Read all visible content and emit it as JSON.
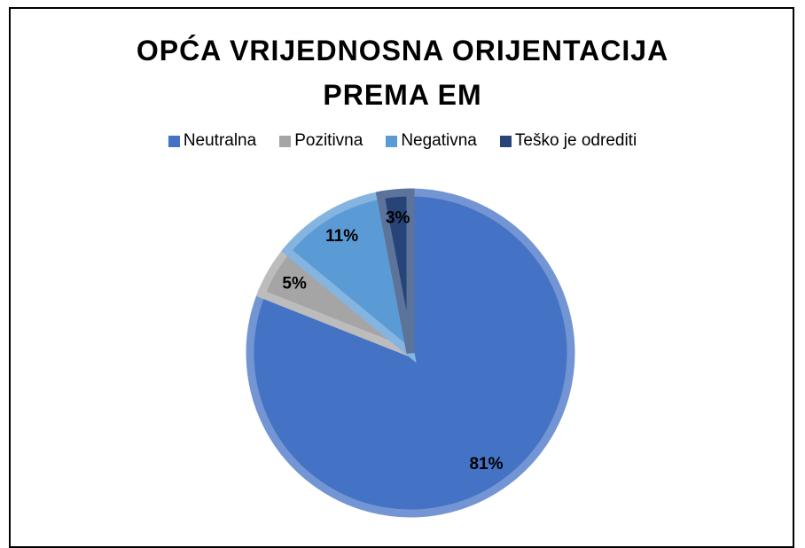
{
  "chart_data": {
    "type": "pie",
    "title": "OPĆA VRIJEDNOSNA ORIJENTACIJA PREMA EM",
    "categories": [
      "Neutralna",
      "Pozitivna",
      "Negativna",
      "Teško je odrediti"
    ],
    "values": [
      81,
      5,
      11,
      3
    ],
    "value_labels": [
      "81%",
      "5%",
      "11%",
      "3%"
    ],
    "colors": [
      "#4472c4",
      "#a5a5a5",
      "#5b9bd5",
      "#264478"
    ],
    "legend": "top"
  }
}
